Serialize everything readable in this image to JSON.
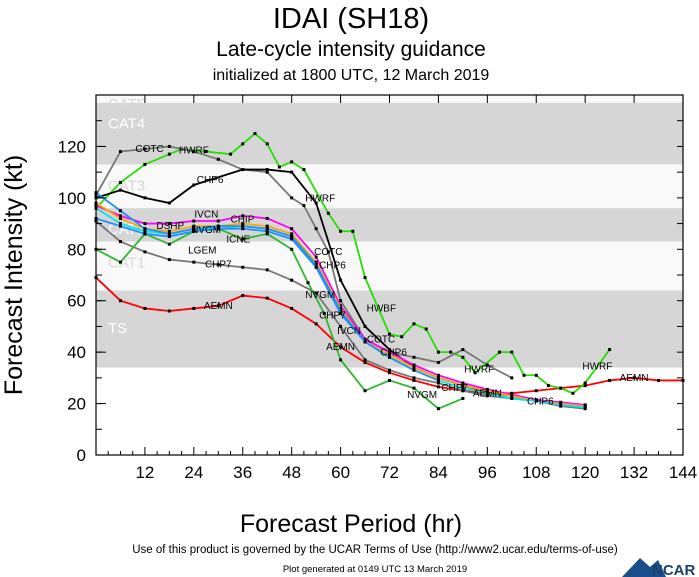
{
  "chart_data": {
    "type": "line",
    "title": "IDAI (SH18)",
    "subtitle": "Late-cycle intensity guidance",
    "subtitle2": "initialized at 1800 UTC, 12 March 2019",
    "xlabel": "Forecast Period (hr)",
    "ylabel": "Forecast Intensity (kt)",
    "xlim": [
      0,
      144
    ],
    "ylim": [
      0,
      140
    ],
    "xticks": [
      12,
      24,
      36,
      48,
      60,
      72,
      84,
      96,
      108,
      120,
      132,
      144
    ],
    "yticks": [
      0,
      20,
      40,
      60,
      80,
      100,
      120
    ],
    "grid": false,
    "bands": [
      {
        "label": "TS",
        "from": 34,
        "to": 64,
        "shade": "#d6d6d6",
        "text_color": "#ffffff"
      },
      {
        "label": "CAT1",
        "from": 64,
        "to": 83,
        "shade": "#f9f9f9",
        "text_color": "#d8d8d8"
      },
      {
        "label": "CAT2",
        "from": 83,
        "to": 96,
        "shade": "#d6d6d6",
        "text_color": "#ffffff"
      },
      {
        "label": "CAT3",
        "from": 96,
        "to": 113,
        "shade": "#f9f9f9",
        "text_color": "#d8d8d8"
      },
      {
        "label": "CAT4",
        "from": 113,
        "to": 137,
        "shade": "#d6d6d6",
        "text_color": "#ffffff"
      },
      {
        "label": "CAT5",
        "from": 137,
        "to": 160,
        "shade": "#f9f9f9",
        "text_color": "#d8d8d8"
      }
    ],
    "series": [
      {
        "name": "AEMN",
        "color": "#ff0000",
        "x": [
          0,
          6,
          12,
          18,
          24,
          30,
          36,
          42,
          48,
          54,
          60,
          66,
          72,
          78,
          84,
          90,
          96,
          102,
          108,
          114,
          120,
          126,
          132,
          138,
          144
        ],
        "y": [
          69,
          60,
          57,
          56,
          57,
          58,
          62,
          61,
          57,
          51,
          42,
          36,
          32,
          29,
          26.5,
          25,
          24,
          24,
          25,
          26,
          27,
          29,
          30,
          29,
          29
        ],
        "labels": [
          30,
          60,
          96,
          132
        ]
      },
      {
        "name": "HWRF",
        "color": "#22e000",
        "x": [
          0,
          6,
          12,
          18,
          21,
          27,
          33,
          36,
          39,
          42,
          45,
          48,
          51,
          57,
          60,
          63,
          66,
          72,
          75,
          78,
          81,
          84,
          87,
          90,
          93,
          99,
          102,
          105,
          108,
          111,
          114,
          117,
          120,
          126
        ],
        "y": [
          96,
          106,
          113,
          117,
          119,
          118,
          117,
          121,
          125,
          121,
          112,
          114,
          111,
          94,
          87,
          87,
          69,
          47,
          46,
          51,
          49,
          40,
          40,
          38,
          32,
          40,
          40,
          31,
          31,
          27,
          26,
          24,
          28,
          41
        ],
        "labels": [
          24,
          55,
          94,
          123
        ]
      },
      {
        "name": "HWBF",
        "color": "#22e000",
        "x": [],
        "y": [],
        "labels": [],
        "label_points": [
          [
            70,
            57
          ]
        ]
      },
      {
        "name": "COTC",
        "color": "#777777",
        "x": [
          0,
          6,
          12,
          18,
          24,
          30,
          36,
          42,
          48,
          51,
          54,
          57,
          60,
          66,
          72,
          78,
          84,
          90,
          96,
          102
        ],
        "y": [
          101,
          118,
          119,
          120,
          118,
          115,
          111,
          110,
          100,
          97,
          88,
          79,
          60,
          45,
          40,
          38,
          36,
          41,
          35,
          30
        ],
        "labels": [
          21,
          57,
          66
        ]
      },
      {
        "name": "CHP6",
        "color": "#000000",
        "x": [
          0,
          6,
          12,
          18,
          24,
          36,
          42,
          48,
          54,
          60,
          66,
          72,
          78,
          84,
          90,
          96,
          102,
          108,
          114,
          120
        ],
        "y": [
          100,
          103,
          100,
          98,
          105,
          111,
          111,
          110,
          98,
          68,
          50,
          41,
          34,
          30,
          27,
          24.6,
          23,
          21,
          20,
          19
        ],
        "labels": [
          28,
          58,
          73,
          109
        ]
      },
      {
        "name": "CHP7",
        "color": "#777777",
        "x": [
          0,
          6,
          12,
          18,
          24,
          30,
          36,
          42,
          48,
          54,
          60,
          66,
          72,
          78,
          84,
          90,
          96,
          102,
          108,
          114,
          120
        ],
        "y": [
          91,
          83,
          79,
          76,
          75,
          74,
          73,
          72,
          68,
          63,
          50,
          37,
          33,
          30,
          28,
          25,
          23,
          22,
          21,
          19,
          18
        ],
        "labels": [
          30,
          58,
          88
        ]
      },
      {
        "name": "NVGM",
        "color": "#2eb82e",
        "x": [
          0,
          6,
          12,
          18,
          24,
          30,
          36,
          42,
          48,
          52,
          56,
          60,
          66,
          72,
          78,
          84,
          90
        ],
        "y": [
          80,
          75,
          86,
          82,
          87,
          88,
          84,
          86,
          80,
          67,
          55,
          37,
          25,
          29,
          26,
          18,
          22
        ],
        "labels": [
          27,
          55,
          80
        ]
      },
      {
        "name": "CHIP",
        "color": "#ff00ff",
        "x": [
          0,
          6,
          12,
          18,
          24,
          30,
          36,
          42,
          48,
          54,
          60,
          66,
          72,
          78,
          84,
          90,
          96,
          102,
          108,
          114,
          120
        ],
        "y": [
          97,
          93,
          90,
          90,
          91,
          91,
          93,
          92,
          88,
          77,
          58,
          45,
          40,
          35,
          31,
          28,
          25.5,
          23.5,
          21.5,
          20.5,
          19.5
        ],
        "labels": [
          32
        ]
      },
      {
        "name": "IVCN",
        "color": "#ffa500",
        "x": [
          0,
          6,
          12,
          18,
          24,
          30,
          36,
          42,
          48,
          54,
          60,
          66,
          72,
          78,
          84,
          90,
          96,
          102,
          108,
          114,
          120
        ],
        "y": [
          98,
          92,
          88,
          87,
          89,
          89,
          90,
          89,
          86,
          75,
          57,
          44,
          39,
          34,
          30,
          27,
          25,
          23,
          21,
          20,
          19
        ],
        "labels": [
          31,
          66
        ]
      },
      {
        "name": "ICNE",
        "color": "#00e5ee",
        "x": [
          0,
          6,
          12,
          18,
          24,
          30,
          36,
          42,
          48,
          54,
          60,
          66,
          72,
          78,
          84,
          90,
          96,
          102,
          108,
          114,
          120
        ],
        "y": [
          96,
          90,
          87,
          86,
          88,
          88,
          89,
          88,
          85,
          74,
          56,
          44,
          38,
          33,
          29,
          26,
          24,
          22,
          21,
          19.5,
          18.5
        ],
        "labels": [
          31
        ]
      },
      {
        "name": "DSHP",
        "color": "#1e90ff",
        "x": [
          0,
          6,
          12,
          18,
          24,
          30,
          36,
          42,
          48,
          54,
          60,
          66,
          72,
          78,
          84
        ],
        "y": [
          102,
          95,
          88,
          86,
          88,
          89,
          89,
          88,
          85,
          74,
          56,
          44,
          38,
          33,
          29
        ],
        "labels": [
          30
        ]
      },
      {
        "name": "LGEM",
        "color": "#1e90ff",
        "x": [
          0,
          6,
          12,
          18,
          24,
          30,
          36,
          42,
          48,
          54,
          60,
          66
        ],
        "y": [
          92,
          89,
          86,
          85,
          87,
          88,
          88,
          87,
          84,
          73,
          55,
          44
        ],
        "labels": [
          30
        ]
      }
    ]
  },
  "footer": {
    "terms": "Use of this product is governed by the UCAR Terms of Use (http://www2.ucar.edu/terms-of-use)",
    "generated": "Plot generated at 0149 UTC   13 March 2019",
    "logo_text": "NCAR"
  }
}
